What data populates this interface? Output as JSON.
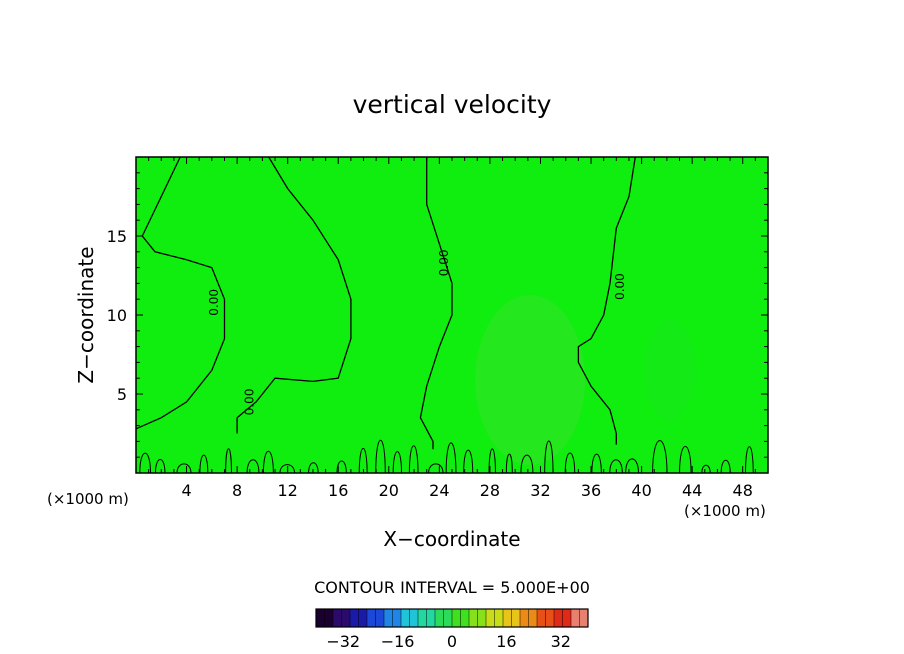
{
  "chart_data": {
    "type": "heatmap",
    "title": "vertical velocity",
    "xlabel": "X−coordinate",
    "ylabel": "Z−coordinate",
    "x_unit": "(×1000 m)",
    "y_unit": "(×1000 m)",
    "xlim": [
      0,
      50
    ],
    "ylim": [
      0,
      20
    ],
    "x_ticks": [
      4,
      8,
      12,
      16,
      20,
      24,
      28,
      32,
      36,
      40,
      44,
      48
    ],
    "y_ticks": [
      5,
      10,
      15
    ],
    "contour_interval_text": "CONTOUR INTERVAL = 5.000E+00",
    "contour_label": "0.00",
    "contours_zero": [
      [
        [
          0,
          2.8
        ],
        [
          2,
          3.5
        ],
        [
          4,
          4.5
        ],
        [
          6,
          6.5
        ],
        [
          7,
          8.5
        ],
        [
          7,
          11
        ],
        [
          6,
          13
        ],
        [
          4,
          13.5
        ],
        [
          1.5,
          14
        ],
        [
          0.5,
          15
        ],
        [
          2,
          17.5
        ],
        [
          3.5,
          20
        ]
      ],
      [
        [
          10.5,
          20
        ],
        [
          12,
          18
        ],
        [
          14,
          16
        ],
        [
          16,
          13.5
        ],
        [
          17,
          11
        ],
        [
          17,
          8.5
        ],
        [
          16,
          6
        ],
        [
          14,
          5.8
        ],
        [
          11,
          6
        ],
        [
          9.5,
          4.5
        ],
        [
          8,
          3.5
        ],
        [
          8,
          2.5
        ]
      ],
      [
        [
          23,
          20
        ],
        [
          23,
          17
        ],
        [
          24,
          14.5
        ],
        [
          25,
          12
        ],
        [
          25,
          10
        ],
        [
          24,
          8
        ],
        [
          23,
          5.5
        ],
        [
          22.5,
          3.5
        ],
        [
          23.5,
          2
        ],
        [
          23.5,
          1.5
        ]
      ],
      [
        [
          39.5,
          20
        ],
        [
          39,
          17.5
        ],
        [
          38,
          15.5
        ],
        [
          37.5,
          12
        ],
        [
          37,
          10
        ],
        [
          36,
          8.5
        ],
        [
          35,
          8
        ],
        [
          35,
          7
        ],
        [
          36,
          5.5
        ],
        [
          37.5,
          4
        ],
        [
          38,
          2.5
        ],
        [
          38,
          1.8
        ]
      ]
    ],
    "colorbar": {
      "ticks": [
        -32,
        -16,
        0,
        16,
        32
      ],
      "range": [
        -40,
        40
      ],
      "colors": [
        "#1a0030",
        "#2b0a6b",
        "#1a1aa8",
        "#1c48d8",
        "#1f86e8",
        "#20c4d8",
        "#22d8a0",
        "#2adc5a",
        "#3fe020",
        "#86e01a",
        "#c8dc18",
        "#e8c418",
        "#ec8a18",
        "#e85018",
        "#e02a18",
        "#e88070"
      ]
    },
    "field_color": "#10ee10"
  }
}
